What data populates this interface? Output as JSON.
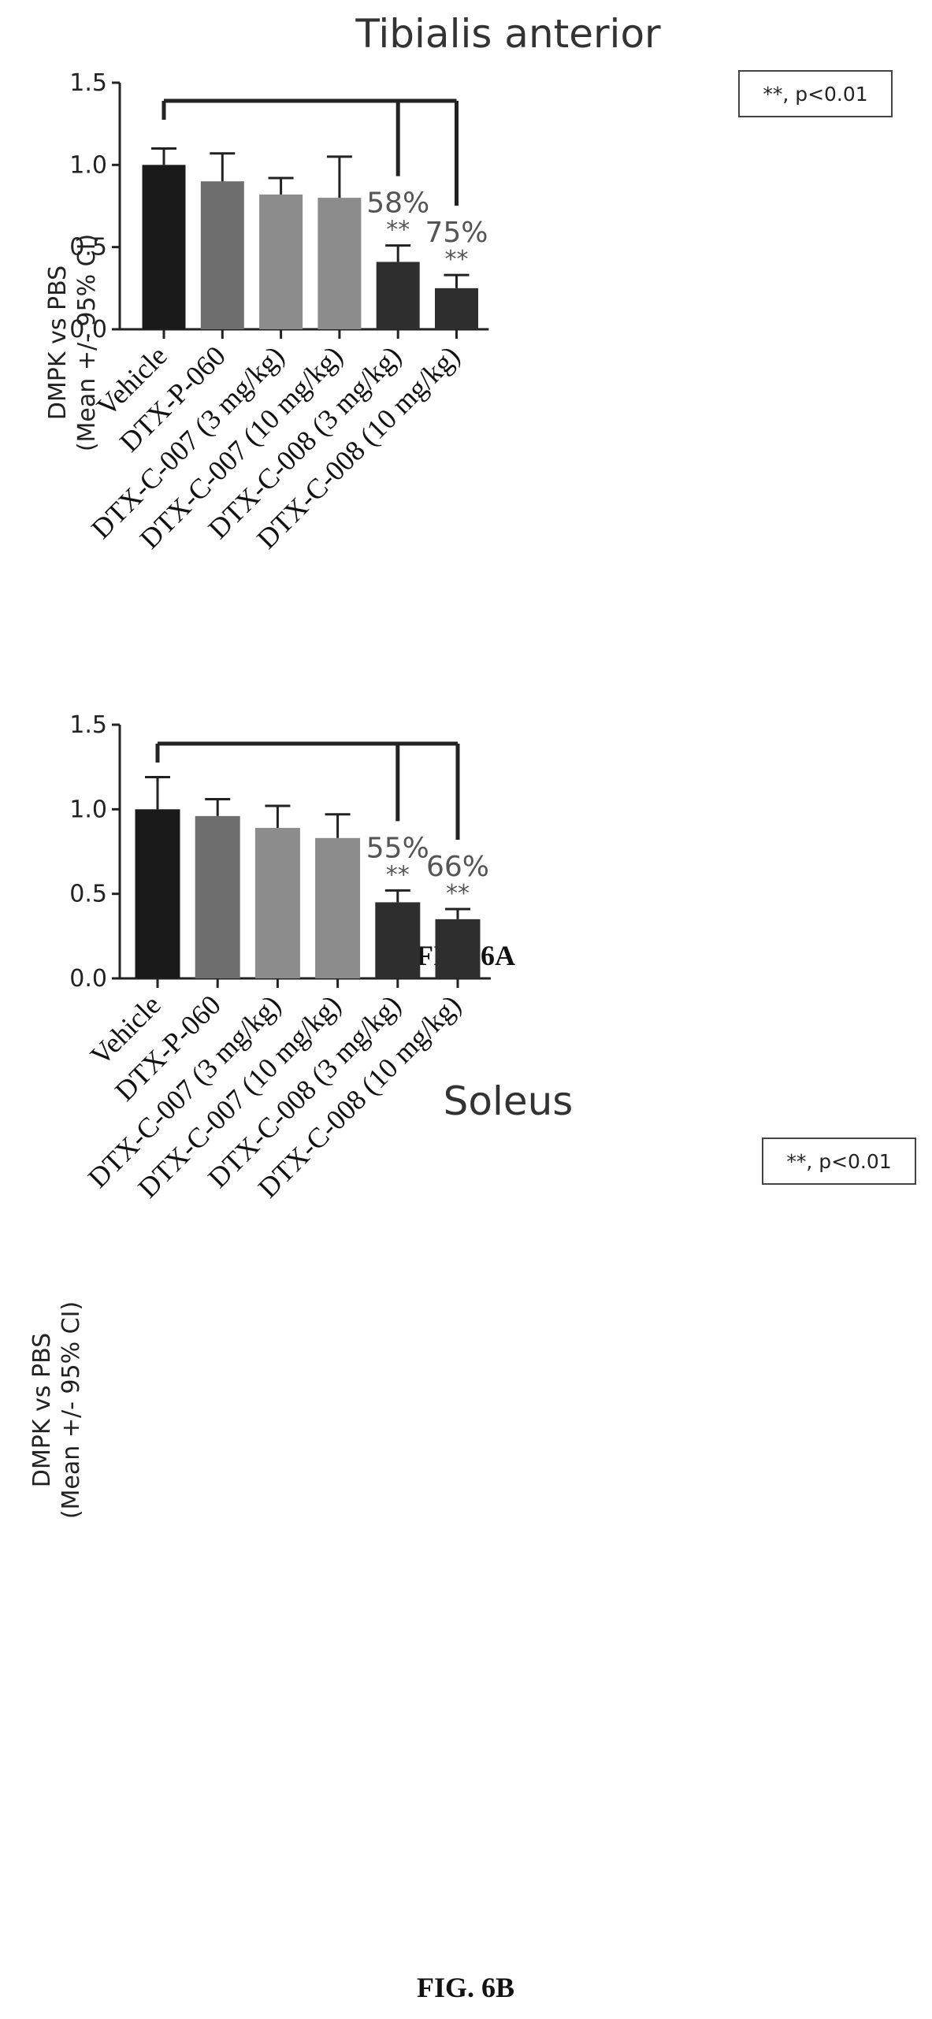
{
  "chart_data": [
    {
      "type": "bar",
      "title": "Tibialis anterior",
      "legend": "**, p<0.01",
      "ylabel_line1": "DMPK vs PBS",
      "ylabel_line2": "(Mean +/- 95% CI)",
      "ylim": [
        0,
        1.5
      ],
      "yticks": [
        "0.0",
        "0.5",
        "1.0",
        "1.5"
      ],
      "categories": [
        "Vehicle",
        "DTX-P-060",
        "DTX-C-007  (3 mg/kg)",
        "DTX-C-007  (10 mg/kg)",
        "DTX-C-008  (3 mg/kg)",
        "DTX-C-008  (10 mg/kg)"
      ],
      "values": [
        1.0,
        0.9,
        0.82,
        0.8,
        0.41,
        0.25
      ],
      "error_upper": [
        1.1,
        1.07,
        0.92,
        1.05,
        0.51,
        0.33
      ],
      "bar_colors": [
        "#1a1a1a",
        "#6e6e6e",
        "#8c8c8c",
        "#8c8c8c",
        "#2e2e2e",
        "#2e2e2e"
      ],
      "annotations": [
        {
          "category_index": 4,
          "percent": "58%",
          "stars": "**"
        },
        {
          "category_index": 5,
          "percent": "75%",
          "stars": "**"
        }
      ],
      "comparison_bracket": {
        "from": 0,
        "to": [
          4,
          5
        ]
      },
      "caption": "FIG. 6A"
    },
    {
      "type": "bar",
      "title": "Soleus",
      "legend": "**, p<0.01",
      "ylabel_line1": "DMPK vs PBS",
      "ylabel_line2": "(Mean +/- 95% CI)",
      "ylim": [
        0,
        1.5
      ],
      "yticks": [
        "0.0",
        "0.5",
        "1.0",
        "1.5"
      ],
      "categories": [
        "Vehicle",
        "DTX-P-060",
        "DTX-C-007  (3 mg/kg)",
        "DTX-C-007  (10 mg/kg)",
        "DTX-C-008  (3 mg/kg)",
        "DTX-C-008  (10 mg/kg)"
      ],
      "values": [
        1.0,
        0.96,
        0.89,
        0.83,
        0.45,
        0.35
      ],
      "error_upper": [
        1.19,
        1.06,
        1.02,
        0.97,
        0.52,
        0.41
      ],
      "bar_colors": [
        "#1a1a1a",
        "#6e6e6e",
        "#8c8c8c",
        "#8c8c8c",
        "#2e2e2e",
        "#2e2e2e"
      ],
      "annotations": [
        {
          "category_index": 4,
          "percent": "55%",
          "stars": "**"
        },
        {
          "category_index": 5,
          "percent": "66%",
          "stars": "**"
        }
      ],
      "comparison_bracket": {
        "from": 0,
        "to": [
          4,
          5
        ]
      },
      "caption": "FIG. 6B"
    }
  ]
}
